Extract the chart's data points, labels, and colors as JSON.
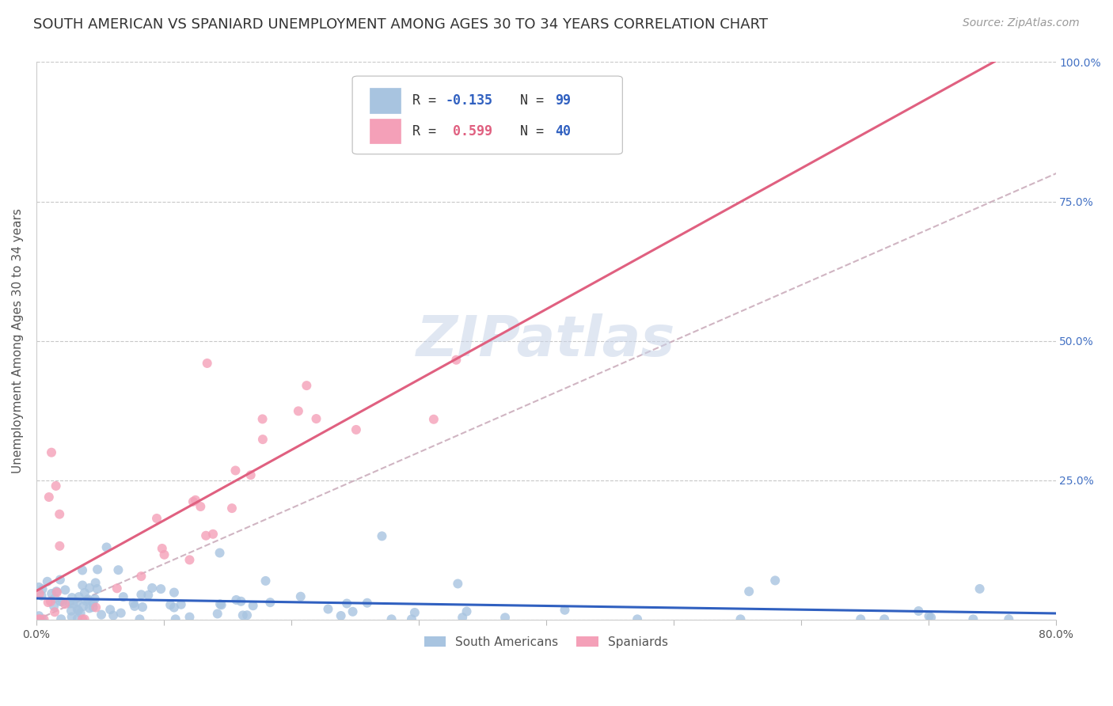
{
  "title": "SOUTH AMERICAN VS SPANIARD UNEMPLOYMENT AMONG AGES 30 TO 34 YEARS CORRELATION CHART",
  "source": "Source: ZipAtlas.com",
  "ylabel": "Unemployment Among Ages 30 to 34 years",
  "xlim": [
    0.0,
    0.8
  ],
  "ylim": [
    0.0,
    1.0
  ],
  "ytick_positions": [
    0.0,
    0.25,
    0.5,
    0.75,
    1.0
  ],
  "ytick_labels": [
    "",
    "25.0%",
    "50.0%",
    "75.0%",
    "100.0%"
  ],
  "grid_color": "#c8c8c8",
  "background_color": "#ffffff",
  "watermark_text": "ZIPatlas",
  "sa_color": "#a8c4e0",
  "sp_color": "#f4a0b8",
  "sa_line_color": "#3060c0",
  "sp_line_color": "#e06080",
  "diag_line_color": "#c8a8b8",
  "R_sa": -0.135,
  "N_sa": 99,
  "R_sp": 0.599,
  "N_sp": 40,
  "title_fontsize": 13,
  "axis_label_fontsize": 11,
  "tick_fontsize": 10,
  "source_fontsize": 10,
  "legend_r_sa_color": "#3060c0",
  "legend_r_sp_color": "#e06080",
  "legend_n_color": "#3060c0",
  "legend_label_color": "#333333"
}
